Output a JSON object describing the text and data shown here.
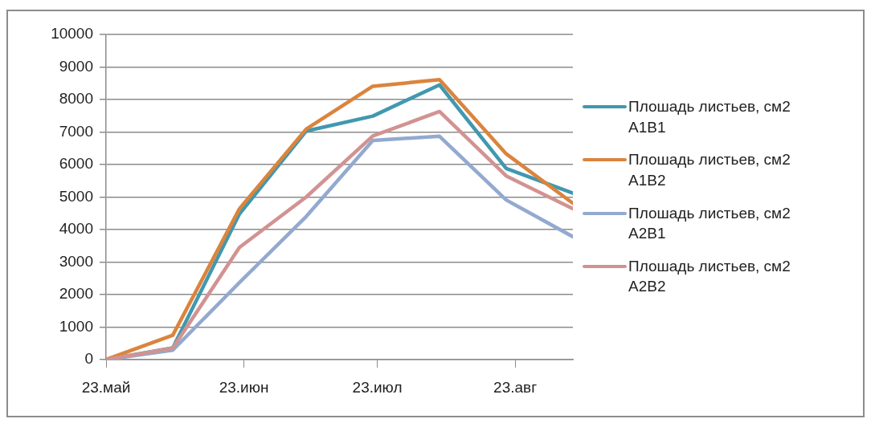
{
  "chart_data": {
    "type": "line",
    "x": [
      "--05-23",
      "--06-07",
      "--06-22",
      "--07-07",
      "--07-22",
      "--08-06",
      "--08-21",
      "--09-05"
    ],
    "series": [
      {
        "name": "Плошадь листьев, см2 A1B1",
        "color": "#4198af",
        "values": [
          0,
          360,
          4480,
          7030,
          7490,
          8450,
          5880,
          5120
        ]
      },
      {
        "name": "Плошадь листьев, см2 A1B2",
        "color": "#db843d",
        "values": [
          0,
          750,
          4640,
          7090,
          8410,
          8610,
          6330,
          4810
        ]
      },
      {
        "name": "Плошадь листьев, см2 A2B1",
        "color": "#93a9cf",
        "values": [
          0,
          290,
          2370,
          4400,
          6740,
          6870,
          4910,
          3780
        ]
      },
      {
        "name": "Плошадь листьев, см2 A2B2",
        "color": "#d19392",
        "values": [
          0,
          350,
          3450,
          5000,
          6880,
          7630,
          5650,
          4640
        ]
      }
    ],
    "xlim": [
      "--05-23",
      "--09-05"
    ],
    "xticks": [
      {
        "value": "--05-23",
        "label": "23.май"
      },
      {
        "value": "--06-23",
        "label": "23.июн"
      },
      {
        "value": "--07-23",
        "label": "23.июл"
      },
      {
        "value": "--08-23",
        "label": "23.авг"
      }
    ],
    "ylim": [
      0,
      10000
    ],
    "yticks": [
      0,
      1000,
      2000,
      3000,
      4000,
      5000,
      6000,
      7000,
      8000,
      9000,
      10000
    ],
    "grid": "y",
    "legend": "right",
    "marker": "none",
    "line_style": "solid"
  }
}
